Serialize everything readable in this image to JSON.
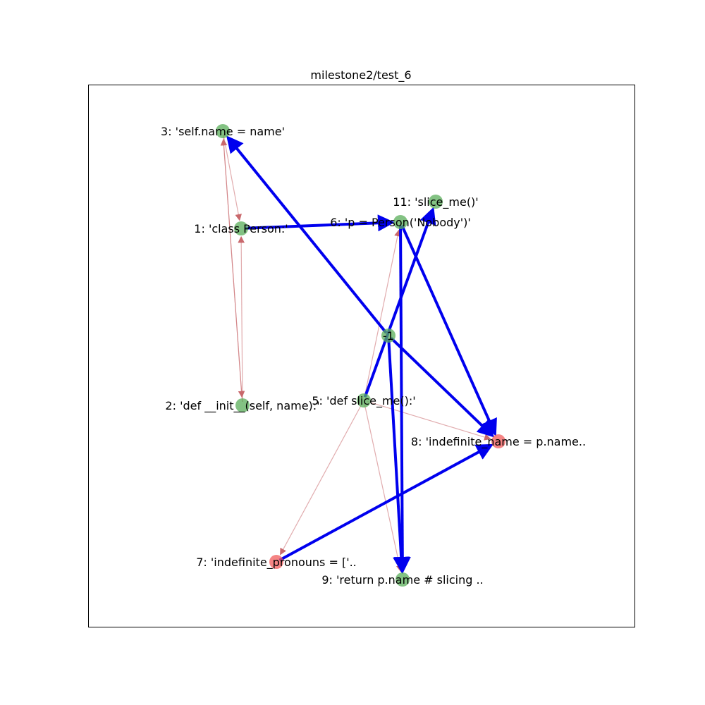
{
  "title": "milestone2/test_6",
  "colors": {
    "node_ok": "#5aae5a",
    "node_bad": "#f15b5b",
    "edge_strong": "#0000ee",
    "edge_weak": "#c9686c",
    "frame": "#000000"
  },
  "nodes": [
    {
      "id": "n3",
      "label": "3: 'self.name = name'",
      "status": "ok"
    },
    {
      "id": "n11",
      "label": "11: 'slice_me()'",
      "status": "ok"
    },
    {
      "id": "n6",
      "label": "6: 'p = Person('Nobody')'",
      "status": "ok"
    },
    {
      "id": "n1",
      "label": "1: 'class Person:'",
      "status": "ok"
    },
    {
      "id": "nm1",
      "label": "-1",
      "status": "ok"
    },
    {
      "id": "n5",
      "label": "5: 'def slice_me():'",
      "status": "ok"
    },
    {
      "id": "n2",
      "label": "2: 'def __init__(self, name):'",
      "status": "ok"
    },
    {
      "id": "n8",
      "label": "8: 'indefinite_name = p.name..",
      "status": "bad"
    },
    {
      "id": "n7",
      "label": "7: 'indefinite_pronouns = ['..",
      "status": "bad"
    },
    {
      "id": "n9",
      "label": "9: 'return p.name # slicing ..",
      "status": "ok"
    }
  ],
  "edges": [
    {
      "from": "n3",
      "to": "n1",
      "kind": "weak"
    },
    {
      "from": "n3",
      "to": "n2",
      "kind": "weak"
    },
    {
      "from": "n2",
      "to": "n1",
      "kind": "weak"
    },
    {
      "from": "n2",
      "to": "n3",
      "kind": "weak"
    },
    {
      "from": "n5",
      "to": "n6",
      "kind": "weak"
    },
    {
      "from": "n5",
      "to": "n7",
      "kind": "weak"
    },
    {
      "from": "n5",
      "to": "n8",
      "kind": "weak"
    },
    {
      "from": "n5",
      "to": "n9",
      "kind": "weak"
    },
    {
      "from": "n1",
      "to": "n6",
      "kind": "strong"
    },
    {
      "from": "nm1",
      "to": "n3",
      "kind": "strong"
    },
    {
      "from": "n5",
      "to": "n11",
      "kind": "strong"
    },
    {
      "from": "n6",
      "to": "n8",
      "kind": "strong"
    },
    {
      "from": "n6",
      "to": "n9",
      "kind": "strong"
    },
    {
      "from": "nm1",
      "to": "n8",
      "kind": "strong"
    },
    {
      "from": "nm1",
      "to": "n9",
      "kind": "strong"
    },
    {
      "from": "n7",
      "to": "n8",
      "kind": "strong"
    }
  ]
}
